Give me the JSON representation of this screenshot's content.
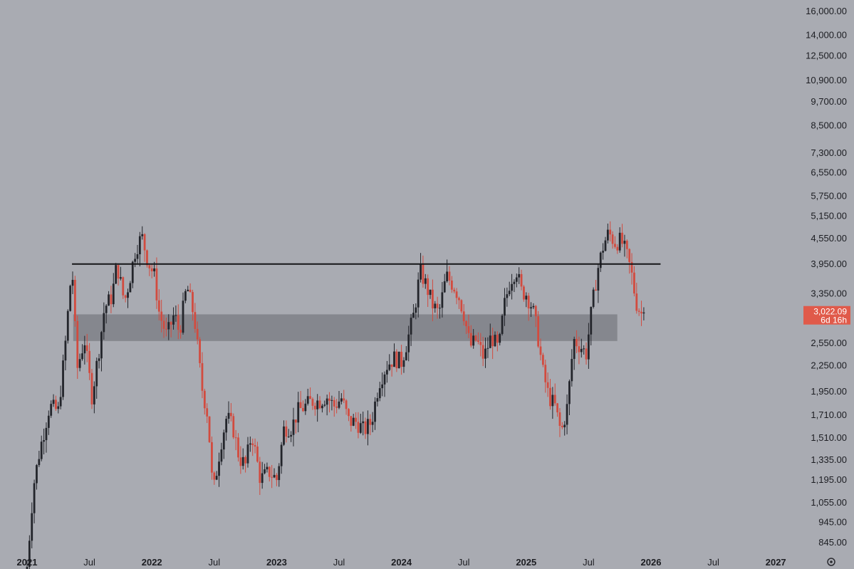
{
  "chart_data": {
    "type": "candlestick",
    "scale": "log",
    "ylim": [
      800,
      16500
    ],
    "price_ticks": [
      845,
      945,
      1055,
      1195,
      1335,
      1510,
      1710,
      1950,
      2250,
      2550,
      3350,
      3950,
      4550,
      5150,
      5750,
      6550,
      7300,
      8500,
      9700,
      10900,
      12500,
      14000,
      16000
    ],
    "price_tick_labels": [
      "845.00",
      "945.00",
      "1,055.00",
      "1,195.00",
      "1,335.00",
      "1,510.00",
      "1,710.00",
      "1,950.00",
      "2,250.00",
      "2,550.00",
      "3,350.00",
      "3,950.00",
      "4,550.00",
      "5,150.00",
      "5,750.00",
      "6,550.00",
      "7,300.00",
      "8,500.00",
      "9,700.00",
      "10,900.00",
      "12,500.00",
      "14,000.00",
      "16,000.00"
    ],
    "time_ticks": [
      {
        "label": "2021",
        "t": 2021.0,
        "bold": true
      },
      {
        "label": "Jul",
        "t": 2021.5,
        "bold": false
      },
      {
        "label": "2022",
        "t": 2022.0,
        "bold": true
      },
      {
        "label": "Jul",
        "t": 2022.5,
        "bold": false
      },
      {
        "label": "2023",
        "t": 2023.0,
        "bold": true
      },
      {
        "label": "Jul",
        "t": 2023.5,
        "bold": false
      },
      {
        "label": "2024",
        "t": 2024.0,
        "bold": true
      },
      {
        "label": "Jul",
        "t": 2024.5,
        "bold": false
      },
      {
        "label": "2025",
        "t": 2025.0,
        "bold": true
      },
      {
        "label": "Jul",
        "t": 2025.5,
        "bold": false
      },
      {
        "label": "2026",
        "t": 2026.0,
        "bold": true
      },
      {
        "label": "Jul",
        "t": 2026.5,
        "bold": false
      },
      {
        "label": "2027",
        "t": 2027.0,
        "bold": true
      }
    ],
    "key_points": [
      [
        2021.0,
        740
      ],
      [
        2021.05,
        1150
      ],
      [
        2021.1,
        1400
      ],
      [
        2021.18,
        1800
      ],
      [
        2021.25,
        1750
      ],
      [
        2021.3,
        2400
      ],
      [
        2021.36,
        3950
      ],
      [
        2021.4,
        2200
      ],
      [
        2021.46,
        2600
      ],
      [
        2021.52,
        1900
      ],
      [
        2021.58,
        2500
      ],
      [
        2021.62,
        3100
      ],
      [
        2021.68,
        3300
      ],
      [
        2021.72,
        3950
      ],
      [
        2021.78,
        3200
      ],
      [
        2021.82,
        3600
      ],
      [
        2021.87,
        4300
      ],
      [
        2021.92,
        4600
      ],
      [
        2021.97,
        4000
      ],
      [
        2022.02,
        3700
      ],
      [
        2022.06,
        3000
      ],
      [
        2022.12,
        2650
      ],
      [
        2022.18,
        3000
      ],
      [
        2022.22,
        2700
      ],
      [
        2022.28,
        3500
      ],
      [
        2022.34,
        2950
      ],
      [
        2022.4,
        2000
      ],
      [
        2022.45,
        1700
      ],
      [
        2022.49,
        1100
      ],
      [
        2022.55,
        1450
      ],
      [
        2022.6,
        1700
      ],
      [
        2022.65,
        1600
      ],
      [
        2022.7,
        1350
      ],
      [
        2022.75,
        1300
      ],
      [
        2022.8,
        1550
      ],
      [
        2022.87,
        1200
      ],
      [
        2022.94,
        1250
      ],
      [
        2023.0,
        1200
      ],
      [
        2023.06,
        1600
      ],
      [
        2023.12,
        1600
      ],
      [
        2023.17,
        1750
      ],
      [
        2023.23,
        1800
      ],
      [
        2023.28,
        1850
      ],
      [
        2023.34,
        1850
      ],
      [
        2023.4,
        1900
      ],
      [
        2023.46,
        1800
      ],
      [
        2023.52,
        1880
      ],
      [
        2023.58,
        1650
      ],
      [
        2023.64,
        1650
      ],
      [
        2023.7,
        1570
      ],
      [
        2023.76,
        1650
      ],
      [
        2023.82,
        2050
      ],
      [
        2023.88,
        2250
      ],
      [
        2023.94,
        2350
      ],
      [
        2024.0,
        2300
      ],
      [
        2024.05,
        2600
      ],
      [
        2024.1,
        3000
      ],
      [
        2024.15,
        3800
      ],
      [
        2024.2,
        3500
      ],
      [
        2024.25,
        3150
      ],
      [
        2024.3,
        3000
      ],
      [
        2024.36,
        3700
      ],
      [
        2024.42,
        3500
      ],
      [
        2024.46,
        3300
      ],
      [
        2024.5,
        3000
      ],
      [
        2024.55,
        2500
      ],
      [
        2024.6,
        2600
      ],
      [
        2024.66,
        2350
      ],
      [
        2024.72,
        2650
      ],
      [
        2024.78,
        2450
      ],
      [
        2024.82,
        3100
      ],
      [
        2024.87,
        3600
      ],
      [
        2024.92,
        3850
      ],
      [
        2024.96,
        3400
      ],
      [
        2025.0,
        3350
      ],
      [
        2025.05,
        3100
      ],
      [
        2025.09,
        2700
      ],
      [
        2025.13,
        2200
      ],
      [
        2025.18,
        1900
      ],
      [
        2025.23,
        1800
      ],
      [
        2025.28,
        1550
      ],
      [
        2025.33,
        1800
      ],
      [
        2025.38,
        2600
      ],
      [
        2025.44,
        2500
      ],
      [
        2025.48,
        2400
      ],
      [
        2025.52,
        3000
      ],
      [
        2025.57,
        3800
      ],
      [
        2025.62,
        4400
      ],
      [
        2025.66,
        4700
      ],
      [
        2025.71,
        4450
      ],
      [
        2025.76,
        4500
      ],
      [
        2025.8,
        4200
      ],
      [
        2025.84,
        3800
      ],
      [
        2025.88,
        3200
      ],
      [
        2025.92,
        3000
      ],
      [
        2025.96,
        3022
      ]
    ],
    "resistance_level": 3950,
    "resistance_range": [
      2021.36,
      2025.62
    ],
    "support_zone": [
      2580,
      2990
    ],
    "support_zone_range": [
      2021.37,
      2025.73
    ],
    "last_price_label": "3,022.09",
    "countdown_label": "6d 16h",
    "last_price": 3022.09,
    "colors": {
      "background": "#a9abb2",
      "up_candle": "#23252b",
      "down_candle": "#d24b3f",
      "zone": "#7f8087",
      "resistance_line": "#141517",
      "last_price_badge": "#e05a4a"
    }
  }
}
